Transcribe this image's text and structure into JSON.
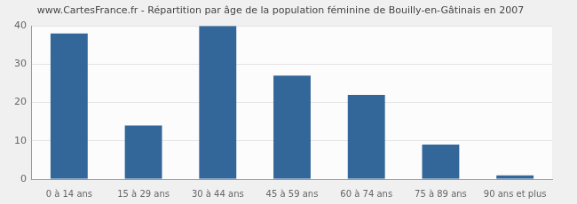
{
  "chart_data": {
    "type": "bar",
    "title": "www.CartesFrance.fr - Répartition par âge de la population féminine de Bouilly-en-Gâtinais en 2007",
    "categories": [
      "0 à 14 ans",
      "15 à 29 ans",
      "30 à 44 ans",
      "45 à 59 ans",
      "60 à 74 ans",
      "75 à 89 ans",
      "90 ans et plus"
    ],
    "values": [
      38,
      14,
      40,
      27,
      22,
      9,
      1
    ],
    "color": "#336699",
    "ylim": [
      0,
      40
    ],
    "yticks": [
      0,
      10,
      20,
      30,
      40
    ],
    "grid": true
  }
}
